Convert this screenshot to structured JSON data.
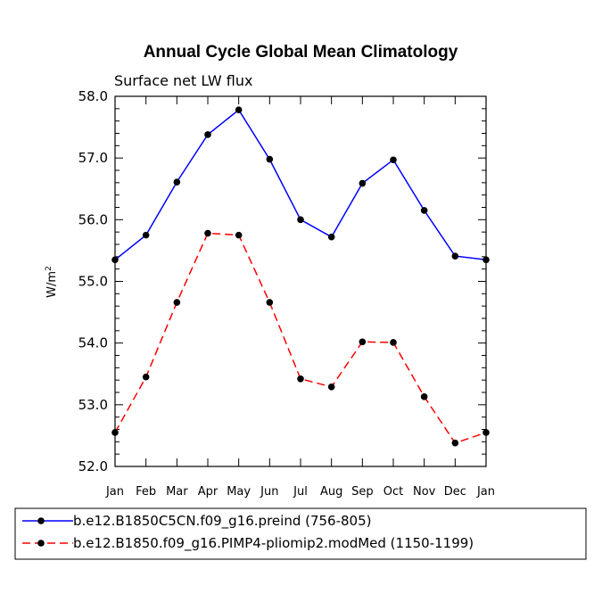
{
  "chart_data": {
    "type": "line",
    "title": "Annual Cycle Global Mean Climatology",
    "subtitle": "Surface net LW flux",
    "ylabel_base": "W/m",
    "ylabel_sup": "2",
    "xlabel": "",
    "categories": [
      "Jan",
      "Feb",
      "Mar",
      "Apr",
      "May",
      "Jun",
      "Jul",
      "Aug",
      "Sep",
      "Oct",
      "Nov",
      "Dec",
      "Jan"
    ],
    "ylim": [
      52.0,
      58.0
    ],
    "yticks": [
      "52.0",
      "53.0",
      "54.0",
      "55.0",
      "56.0",
      "57.0",
      "58.0"
    ],
    "series": [
      {
        "name": "b.e12.B1850C5CN.f09_g16.preind (756-805)",
        "color": "#0000ff",
        "dash": "solid",
        "values": [
          55.35,
          55.75,
          56.61,
          57.38,
          57.78,
          56.98,
          56.0,
          55.72,
          56.59,
          56.97,
          56.15,
          55.41,
          55.35
        ]
      },
      {
        "name": "b.e12.B1850.f09_g16.PIMP4-pliomip2.modMed (1150-1199)",
        "color": "#ff0000",
        "dash": "dashed",
        "values": [
          52.55,
          53.45,
          54.66,
          55.78,
          55.75,
          54.66,
          53.42,
          53.29,
          54.02,
          54.01,
          53.13,
          52.38,
          52.55
        ]
      }
    ]
  }
}
